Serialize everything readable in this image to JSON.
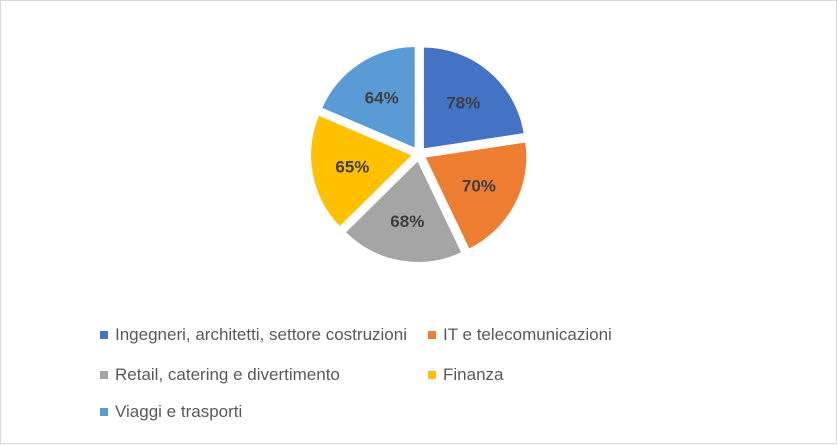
{
  "chart_data": {
    "type": "pie",
    "categories": [
      "Ingegneri, architetti, settore costruzioni",
      "IT e telecomunicazioni",
      "Retail, catering e divertimento",
      "Finanza",
      "Viaggi e trasporti"
    ],
    "values": [
      78,
      70,
      68,
      65,
      64
    ],
    "labels": [
      "78%",
      "70%",
      "68%",
      "65%",
      "64%"
    ],
    "colors": [
      "#4472c4",
      "#ed7d31",
      "#a5a5a5",
      "#ffc000",
      "#5b9bd5"
    ],
    "exploded": true,
    "legend": "bottom"
  }
}
